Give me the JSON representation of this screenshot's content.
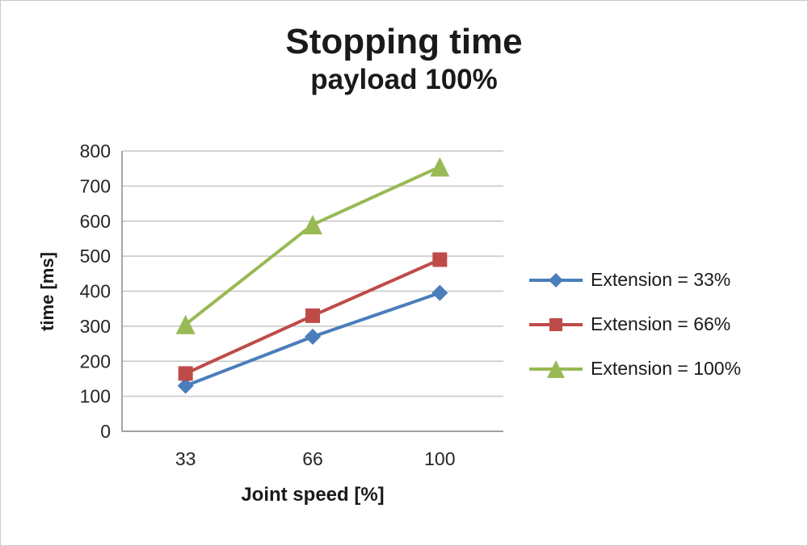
{
  "chart_data": {
    "type": "line",
    "title": "Stopping time",
    "subtitle": "payload 100%",
    "xlabel": "Joint speed [%]",
    "ylabel": "time [ms]",
    "categories": [
      "33",
      "66",
      "100"
    ],
    "series": [
      {
        "name": "Extension = 33%",
        "color": "#4a7ebb",
        "marker": "diamond",
        "values": [
          130,
          270,
          395
        ]
      },
      {
        "name": "Extension = 66%",
        "color": "#be4b48",
        "marker": "square",
        "values": [
          165,
          330,
          490
        ]
      },
      {
        "name": "Extension = 100%",
        "color": "#98b954",
        "marker": "triangle",
        "values": [
          305,
          590,
          755
        ]
      }
    ],
    "ylim": [
      0,
      800
    ],
    "ytick_step": 100,
    "grid": true,
    "legend_position": "right",
    "gridline_color": "#c6c6c6",
    "axis_color": "#808080"
  }
}
